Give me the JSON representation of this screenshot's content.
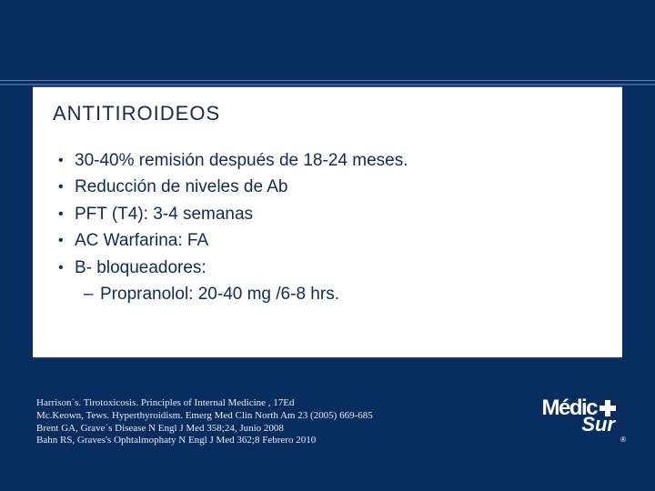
{
  "colors": {
    "slide_bg": "#0a2d5f",
    "panel_bg": "#ffffff",
    "title_color": "#1a2a4a",
    "body_color": "#102a54",
    "ref_color": "#e6edf7",
    "logo_color": "#ffffff",
    "divider_top": "#5a7fb5",
    "divider_bottom": "#3d5f95"
  },
  "typography": {
    "title_fontsize_pt": 17,
    "body_fontsize_pt": 14,
    "ref_fontsize_pt": 8,
    "title_font": "Trebuchet MS",
    "body_font": "Trebuchet MS",
    "ref_font": "Times New Roman"
  },
  "title": "ANTITIROIDEOS",
  "bullets": [
    "30-40% remisión después de 18-24 meses.",
    "Reducción de niveles de Ab",
    "PFT (T4): 3-4 semanas",
    "AC Warfarina: FA",
    "B- bloqueadores:"
  ],
  "sub_bullets": [
    "Propranolol: 20-40 mg /6-8 hrs."
  ],
  "references": [
    "Harrison´s. Tirotoxicosis. Principles of Internal Medicine , 17Ed",
    "Mc.Keown, Tews. Hyperthyroidism. Emerg Med Clin North Am 23 (2005) 669-685",
    "Brent GA, Grave´s Disease N Engl J Med 358;24, Junio 2008",
    "Bahn RS, Graves's Ophtalmophaty N Engl J Med 362;8 Febrero 2010"
  ],
  "logo": {
    "line1": "Médic",
    "line2": "Sur",
    "registered": "®"
  }
}
